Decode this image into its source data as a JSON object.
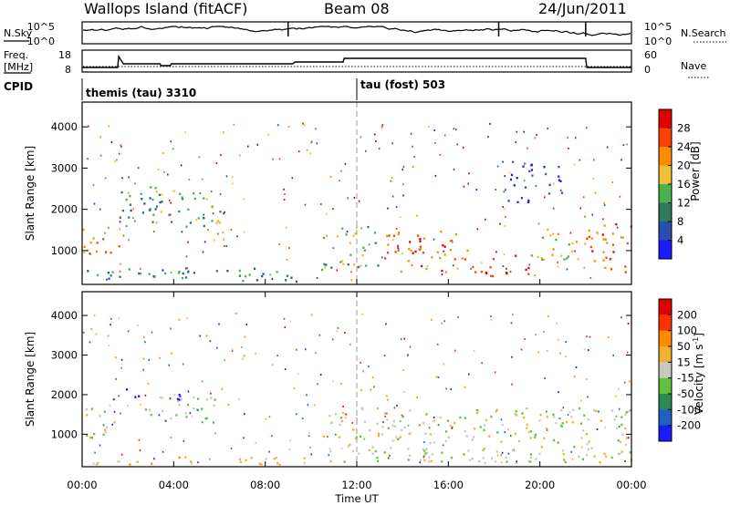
{
  "header": {
    "station": "Wallops Island (fitACF)",
    "beam": "Beam 08",
    "date": "24/Jun/2011"
  },
  "sky_panel": {
    "left_label": "N.Sky",
    "right_label": "N.Search",
    "left_ticks": [
      "10^5",
      "10^0"
    ],
    "right_ticks": [
      "10^5",
      "10^0"
    ]
  },
  "freq_panel": {
    "left_label_1": "Freq.",
    "left_label_2": "[MHz]",
    "right_label": "Nave",
    "left_ticks": [
      "18",
      "8"
    ],
    "right_ticks": [
      "60",
      "0"
    ],
    "freq_mhz_steps": [
      {
        "t": 0.0,
        "v": 10.5
      },
      {
        "t": 1.55,
        "v": 10.5
      },
      {
        "t": 1.6,
        "v": 16.5
      },
      {
        "t": 1.8,
        "v": 12.5
      },
      {
        "t": 3.4,
        "v": 12.5
      },
      {
        "t": 3.45,
        "v": 11.5
      },
      {
        "t": 3.85,
        "v": 11.5
      },
      {
        "t": 3.9,
        "v": 12.5
      },
      {
        "t": 9.2,
        "v": 12.5
      },
      {
        "t": 9.3,
        "v": 13.5
      },
      {
        "t": 11.4,
        "v": 13.5
      },
      {
        "t": 11.45,
        "v": 15.5
      },
      {
        "t": 22.0,
        "v": 15.5
      },
      {
        "t": 22.05,
        "v": 10.5
      },
      {
        "t": 24.0,
        "v": 10.5
      }
    ]
  },
  "cpid": {
    "label": "CPID",
    "segments": [
      {
        "name": "themis (tau) 3310",
        "start_hour": 0
      },
      {
        "name": "tau (fost) 503",
        "start_hour": 12
      }
    ]
  },
  "chart_data": [
    {
      "type": "heatmap",
      "quantity": "Power",
      "ylabel": "Slant Range [km]",
      "xlabel": "Time UT",
      "xlim_hours": [
        0,
        24
      ],
      "ylim_km": [
        180,
        4600
      ],
      "x_ticks": [
        "00:00",
        "04:00",
        "08:00",
        "12:00",
        "16:00",
        "20:00",
        "00:00"
      ],
      "y_ticks": [
        1000,
        2000,
        3000,
        4000
      ],
      "colorbar_label": "Power [dB]",
      "colorbar_ticks": [
        4,
        8,
        12,
        16,
        20,
        24,
        28
      ],
      "colorbar_range": [
        0,
        32
      ],
      "colors": [
        "#1a1aff",
        "#2a4fb0",
        "#2f7a5a",
        "#4caf50",
        "#f0c030",
        "#ff8c00",
        "#ff4000",
        "#e00000"
      ],
      "regions": [
        {
          "t0": 0.0,
          "t1": 1.6,
          "r0": 900,
          "r1": 1700,
          "level": 5
        },
        {
          "t0": 1.3,
          "t1": 3.5,
          "r0": 1700,
          "r1": 2600,
          "level": 2
        },
        {
          "t0": 3.0,
          "t1": 6.0,
          "r0": 1500,
          "r1": 2500,
          "level": 3
        },
        {
          "t0": 0.2,
          "t1": 10.5,
          "r0": 250,
          "r1": 600,
          "level": 2
        },
        {
          "t0": 10.5,
          "t1": 13.0,
          "r0": 600,
          "r1": 1600,
          "level": 3
        },
        {
          "t0": 13.0,
          "t1": 17.0,
          "r0": 500,
          "r1": 1500,
          "level": 6
        },
        {
          "t0": 17.0,
          "t1": 19.5,
          "r0": 400,
          "r1": 900,
          "level": 7
        },
        {
          "t0": 19.5,
          "t1": 22.0,
          "r0": 800,
          "r1": 1600,
          "level": 4
        },
        {
          "t0": 22.0,
          "t1": 24.0,
          "r0": 500,
          "r1": 1700,
          "level": 6
        },
        {
          "t0": 18.5,
          "t1": 21.0,
          "r0": 2200,
          "r1": 3200,
          "level": 1
        }
      ]
    },
    {
      "type": "heatmap",
      "quantity": "Velocity",
      "ylabel": "Slant Range [km]",
      "xlabel": "Time UT",
      "xlim_hours": [
        0,
        24
      ],
      "ylim_km": [
        180,
        4600
      ],
      "x_ticks": [
        "00:00",
        "04:00",
        "08:00",
        "12:00",
        "16:00",
        "20:00",
        "00:00"
      ],
      "y_ticks": [
        1000,
        2000,
        3000,
        4000
      ],
      "colorbar_label": "Velocity [m s",
      "colorbar_label_sup": "-1",
      "colorbar_label_end": "]",
      "colorbar_ticks": [
        "200",
        "100",
        "50",
        "15",
        "-15",
        "-50",
        "-100",
        "-200"
      ],
      "colors": [
        "#1a1aff",
        "#2060c0",
        "#2a8a50",
        "#60c040",
        "#c8c8c0",
        "#f0b030",
        "#ff8c00",
        "#ff3000",
        "#e00000"
      ],
      "regions": [
        {
          "t0": 0.0,
          "t1": 1.6,
          "r0": 900,
          "r1": 1700,
          "level": 4
        },
        {
          "t0": 1.3,
          "t1": 2.6,
          "r0": 1900,
          "r1": 2200,
          "level": 0
        },
        {
          "t0": 3.5,
          "t1": 4.5,
          "r0": 1800,
          "r1": 2200,
          "level": 0
        },
        {
          "t0": 2.5,
          "t1": 6.0,
          "r0": 1300,
          "r1": 2000,
          "level": 3
        },
        {
          "t0": 10.5,
          "t1": 24.0,
          "r0": 300,
          "r1": 1700,
          "level": 4
        },
        {
          "t0": 0.2,
          "t1": 11.0,
          "r0": 250,
          "r1": 450,
          "level": 5
        }
      ]
    }
  ]
}
